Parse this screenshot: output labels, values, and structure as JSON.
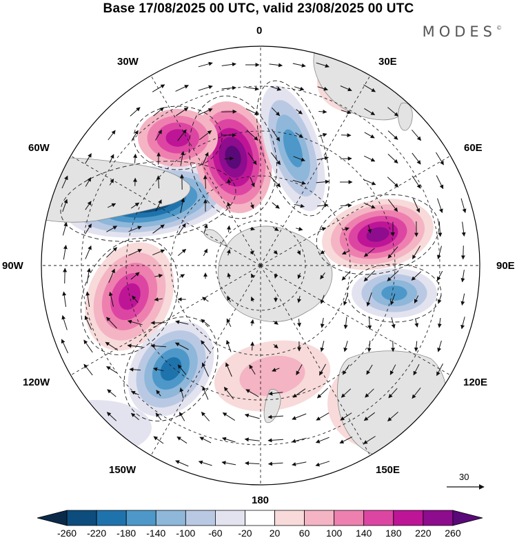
{
  "title": "Base 17/08/2025 00 UTC, valid 23/08/2025 00 UTC",
  "brand": "MODES",
  "brand_mark": "©",
  "longitude_labels": {
    "lon_0": "0",
    "lon_30e": "30E",
    "lon_60e": "60E",
    "lon_90e": "90E",
    "lon_120e": "120E",
    "lon_150e": "150E",
    "lon_180": "180",
    "lon_150w": "150W",
    "lon_120w": "120W",
    "lon_90w": "90W",
    "lon_60w": "60W",
    "lon_30w": "30W"
  },
  "wind_reference": {
    "value": "30"
  },
  "colorbar": {
    "labels": [
      "-260",
      "-220",
      "-180",
      "-140",
      "-100",
      "-60",
      "-20",
      "20",
      "60",
      "100",
      "140",
      "180",
      "220",
      "260"
    ],
    "colors": [
      "#0b2a4a",
      "#0d4d7d",
      "#1f73ad",
      "#4d98c9",
      "#8eb7da",
      "#bac9e3",
      "#e3e3f0",
      "#ffffff",
      "#f7dad9",
      "#f4b4c4",
      "#ee80af",
      "#dd45a3",
      "#be1597",
      "#8e0c8e",
      "#5a0978"
    ]
  },
  "map_colors": {
    "land": "#e3e3e3",
    "coast": "#888888",
    "grid": "#222222",
    "vector": "#111111",
    "contour": "#1a1a1a"
  }
}
